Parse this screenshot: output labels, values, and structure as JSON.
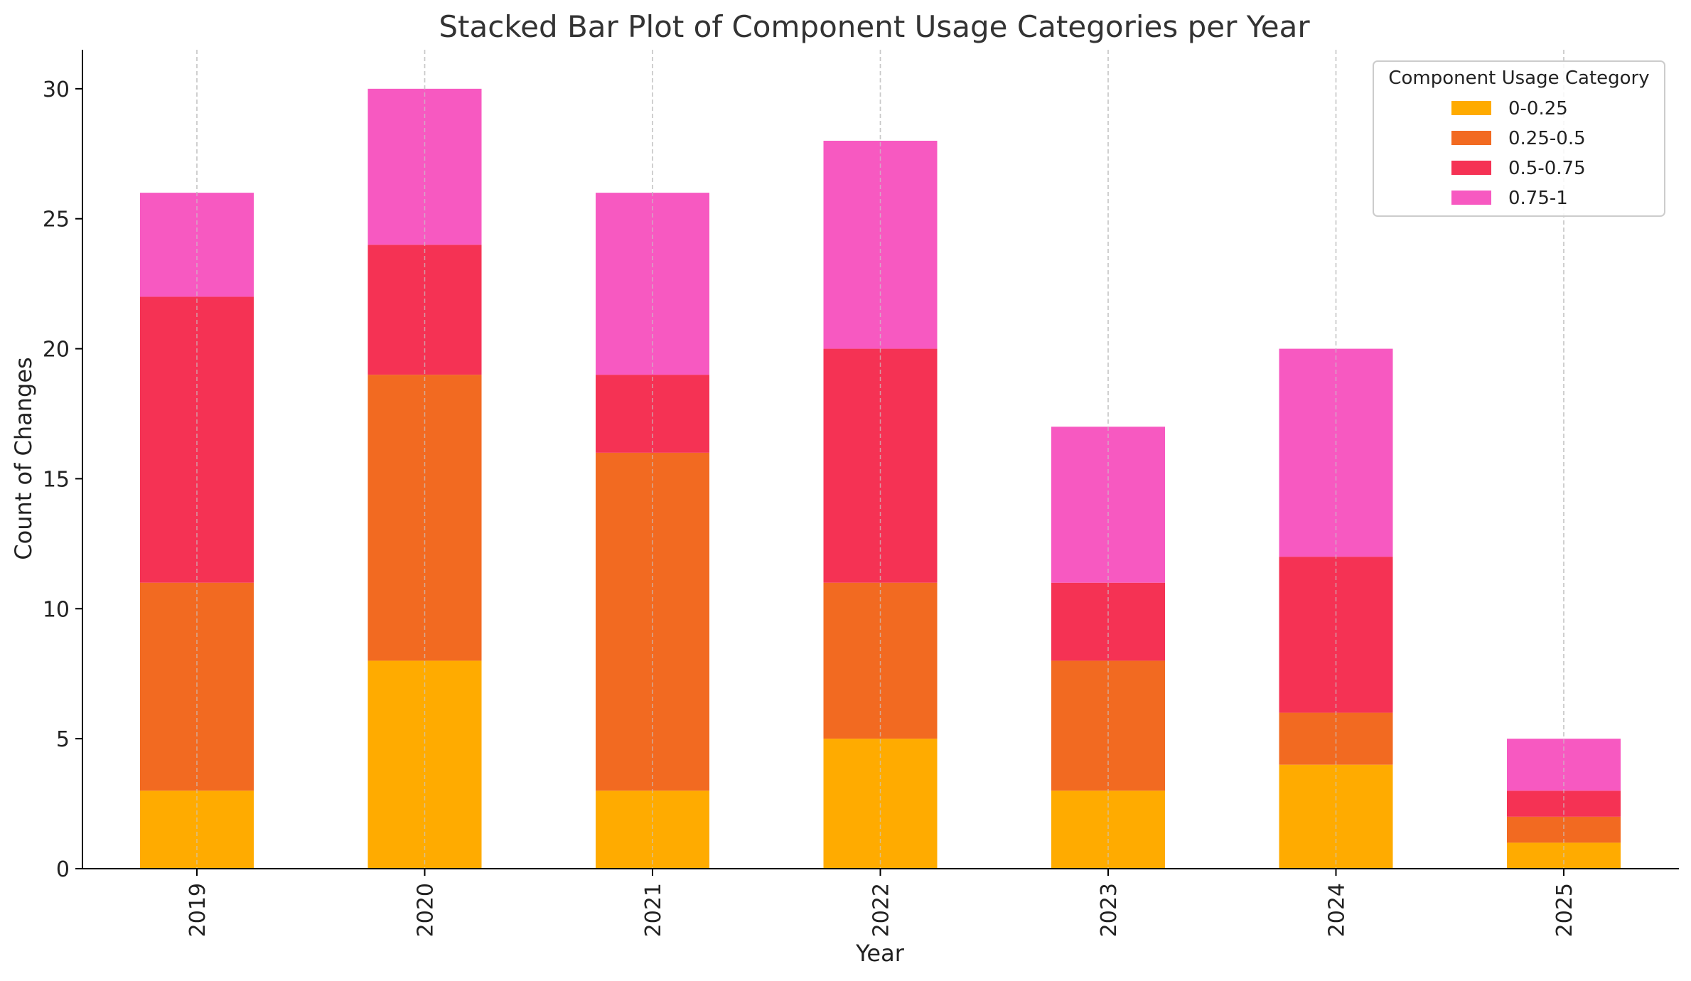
{
  "chart_data": {
    "type": "bar",
    "stacked": true,
    "title": "Stacked Bar Plot of Component Usage Categories per Year",
    "xlabel": "Year",
    "ylabel": "Count of Changes",
    "categories": [
      "2019",
      "2020",
      "2021",
      "2022",
      "2023",
      "2024",
      "2025"
    ],
    "series": [
      {
        "name": "0-0.25",
        "color": "#FFAB00",
        "values": [
          3,
          8,
          3,
          5,
          3,
          4,
          1
        ]
      },
      {
        "name": "0.25-0.5",
        "color": "#F26A21",
        "values": [
          8,
          11,
          13,
          6,
          5,
          2,
          1
        ]
      },
      {
        "name": "0.5-0.75",
        "color": "#F53254",
        "values": [
          11,
          5,
          3,
          9,
          3,
          6,
          1
        ]
      },
      {
        "name": "0.75-1",
        "color": "#F759C1",
        "values": [
          4,
          6,
          7,
          8,
          6,
          8,
          2
        ]
      }
    ],
    "ylim": [
      0,
      31.5
    ],
    "yticks": [
      0,
      5,
      10,
      15,
      20,
      25,
      30
    ],
    "legend": {
      "title": "Component Usage Category",
      "position": "top-right"
    },
    "grid": {
      "x": true,
      "y": false,
      "style": "dashed"
    }
  }
}
